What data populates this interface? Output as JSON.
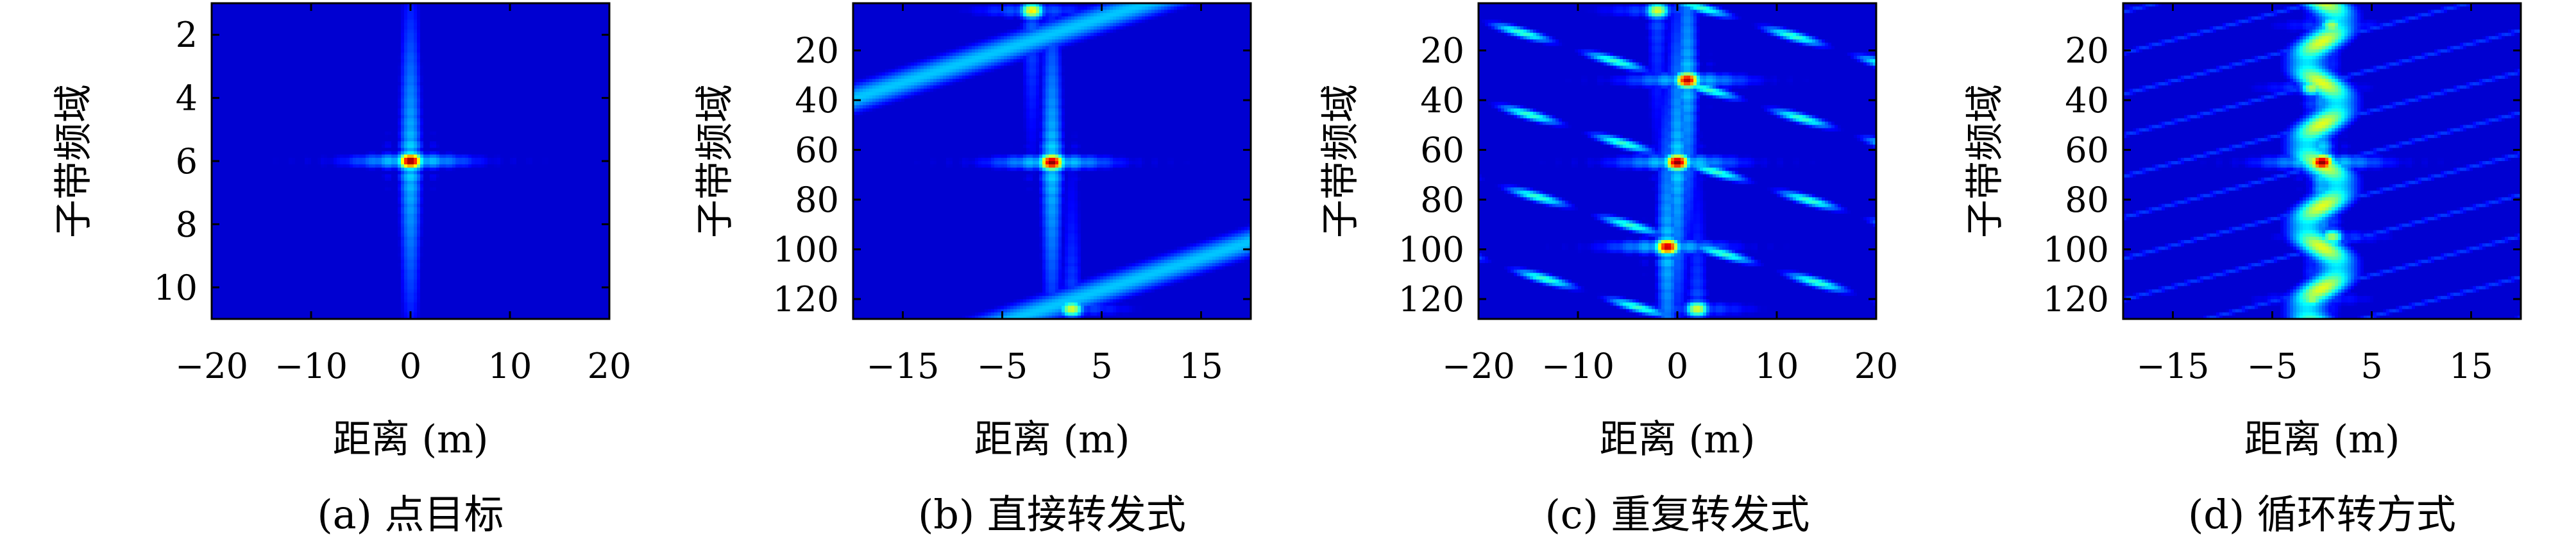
{
  "chart_data": [
    {
      "id": "a",
      "type": "heatmap",
      "caption": "(a) 点目标",
      "xlabel": "距离 (m)",
      "ylabel": "子带频域",
      "xlim": [
        -20,
        20
      ],
      "ylim": [
        1,
        11
      ],
      "y_reversed": true,
      "xticks": [
        -20,
        -10,
        0,
        10,
        20
      ],
      "xtick_labels": [
        "−20",
        "−10",
        "0",
        "10",
        "20"
      ],
      "yticks": [
        2,
        4,
        6,
        8,
        10
      ],
      "ytick_labels": [
        "2",
        "4",
        "6",
        "8",
        "10"
      ],
      "colormap": "jet",
      "peaks": [
        {
          "x": 0,
          "y": 6,
          "amplitude": 1.0
        }
      ],
      "pattern": "sinc-cross"
    },
    {
      "id": "b",
      "type": "heatmap",
      "caption": "(b) 直接转发式",
      "xlabel": "距离 (m)",
      "ylabel": "子带频域",
      "xlim": [
        -20,
        20
      ],
      "ylim": [
        1,
        128
      ],
      "y_reversed": true,
      "xticks": [
        -15,
        -5,
        5,
        15
      ],
      "xtick_labels": [
        "−15",
        "−5",
        "5",
        "15"
      ],
      "yticks": [
        20,
        40,
        60,
        80,
        100,
        120
      ],
      "ytick_labels": [
        "20",
        "40",
        "60",
        "80",
        "100",
        "120"
      ],
      "colormap": "jet",
      "peaks": [
        {
          "x": 0,
          "y": 65,
          "amplitude": 1.0
        },
        {
          "x": -2,
          "y": 4,
          "amplitude": 0.65
        },
        {
          "x": 2,
          "y": 124,
          "amplitude": 0.6
        }
      ],
      "pattern": "diagonal-streaks"
    },
    {
      "id": "c",
      "type": "heatmap",
      "caption": "(c) 重复转发式",
      "xlabel": "距离 (m)",
      "ylabel": "子带频域",
      "xlim": [
        -20,
        20
      ],
      "ylim": [
        1,
        128
      ],
      "y_reversed": true,
      "xticks": [
        -20,
        -10,
        0,
        10,
        20
      ],
      "xtick_labels": [
        "−20",
        "−10",
        "0",
        "10",
        "20"
      ],
      "yticks": [
        20,
        40,
        60,
        80,
        100,
        120
      ],
      "ytick_labels": [
        "20",
        "40",
        "60",
        "80",
        "100",
        "120"
      ],
      "colormap": "jet",
      "peaks": [
        {
          "x": 0,
          "y": 65,
          "amplitude": 1.0
        },
        {
          "x": 1,
          "y": 32,
          "amplitude": 0.95
        },
        {
          "x": -1,
          "y": 99,
          "amplitude": 0.95
        },
        {
          "x": -2,
          "y": 4,
          "amplitude": 0.6
        },
        {
          "x": 2,
          "y": 124,
          "amplitude": 0.6
        }
      ],
      "pattern": "wavy-streaks"
    },
    {
      "id": "d",
      "type": "heatmap",
      "caption": "(d) 循环转方式",
      "xlabel": "距离 (m)",
      "ylabel": "子带频域",
      "xlim": [
        -20,
        20
      ],
      "ylim": [
        1,
        128
      ],
      "y_reversed": true,
      "xticks": [
        -15,
        -5,
        5,
        15
      ],
      "xtick_labels": [
        "−15",
        "−5",
        "5",
        "15"
      ],
      "yticks": [
        20,
        40,
        60,
        80,
        100,
        120
      ],
      "ytick_labels": [
        "20",
        "40",
        "60",
        "80",
        "100",
        "120"
      ],
      "colormap": "jet",
      "peaks": [
        {
          "x": 0,
          "y": 65,
          "amplitude": 1.0
        },
        {
          "x": 1,
          "y": 10,
          "amplitude": 0.55
        },
        {
          "x": -1,
          "y": 35,
          "amplitude": 0.55
        },
        {
          "x": 1,
          "y": 95,
          "amplitude": 0.55
        },
        {
          "x": -1,
          "y": 120,
          "amplitude": 0.55
        }
      ],
      "pattern": "vertical-wave"
    }
  ]
}
